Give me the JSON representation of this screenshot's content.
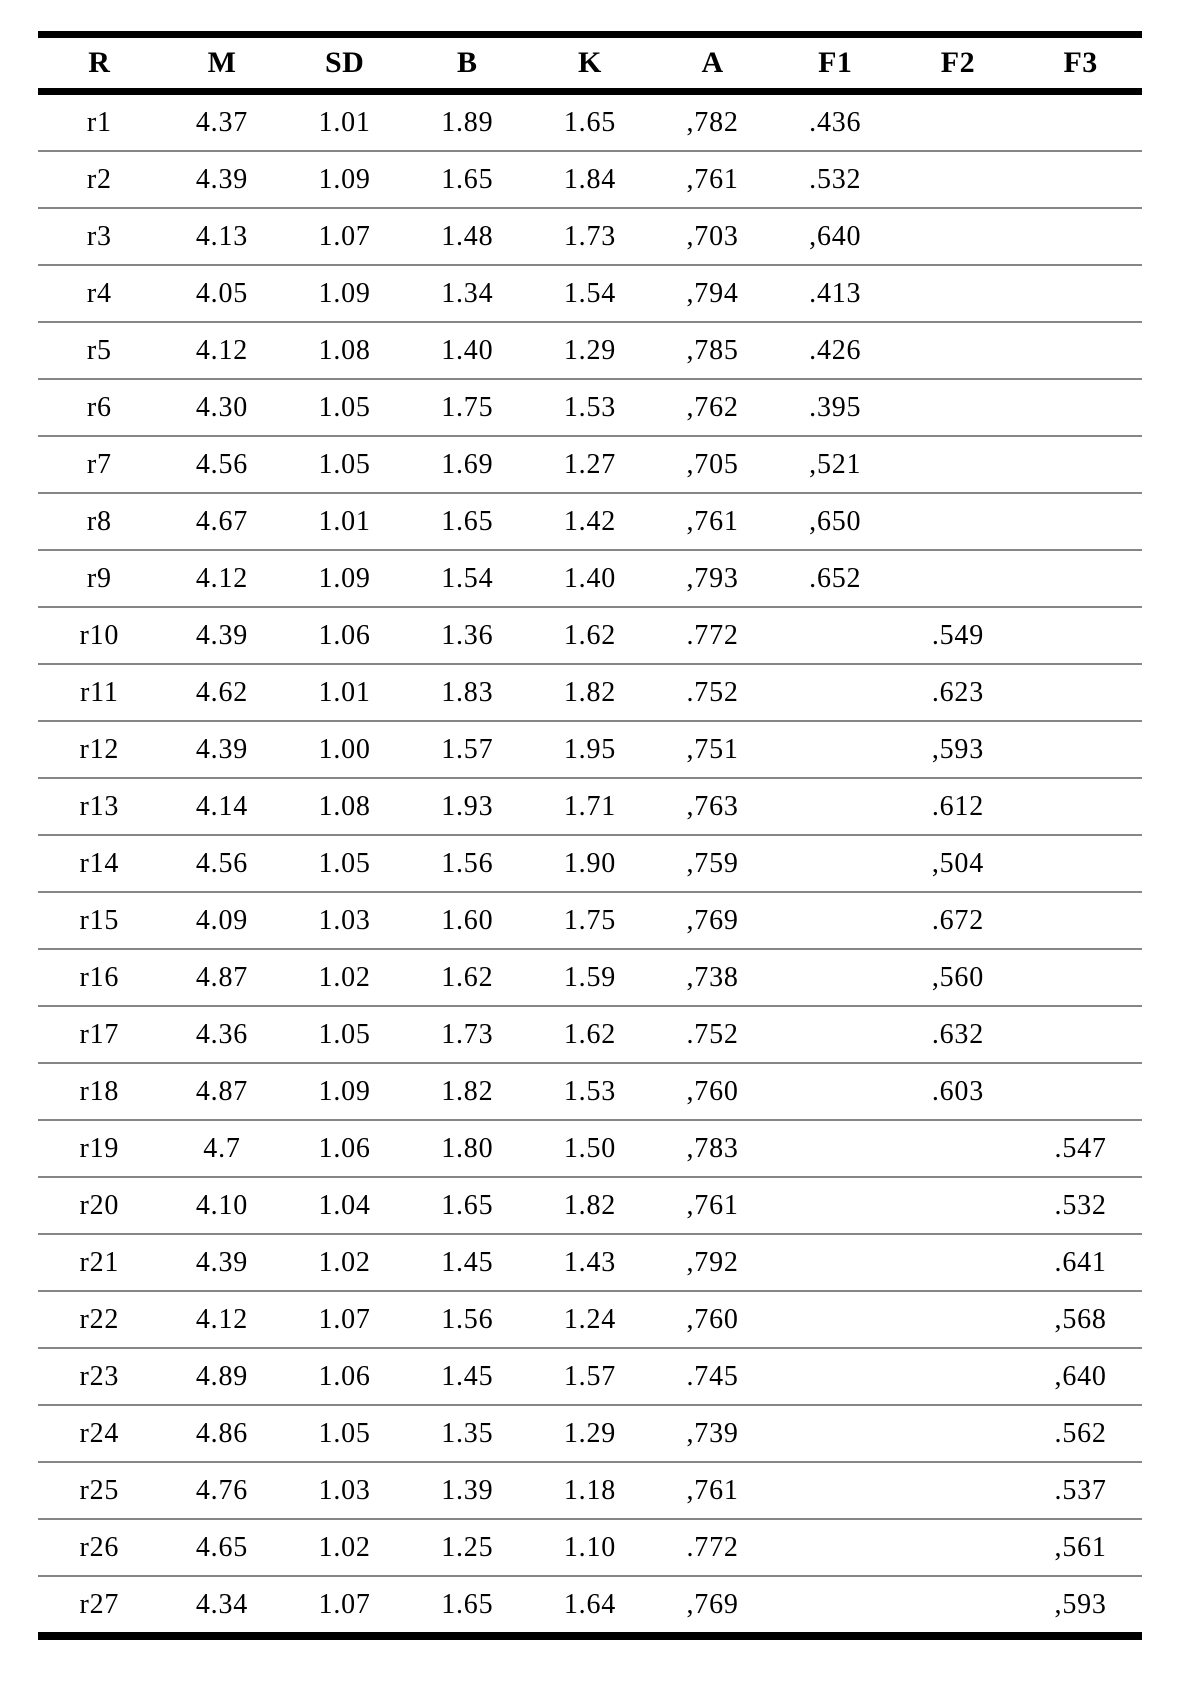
{
  "colors": {
    "rule_heavy": "#000000",
    "rule_light": "#868686",
    "text": "#000000",
    "background": "#ffffff"
  },
  "table": {
    "columns": [
      "R",
      "M",
      "SD",
      "B",
      "K",
      "A",
      "F1",
      "F2",
      "F3"
    ],
    "rows": [
      [
        "r1",
        "4.37",
        "1.01",
        "1.89",
        "1.65",
        ",782",
        ".436",
        "",
        ""
      ],
      [
        "r2",
        "4.39",
        "1.09",
        "1.65",
        "1.84",
        ",761",
        ".532",
        "",
        ""
      ],
      [
        "r3",
        "4.13",
        "1.07",
        "1.48",
        "1.73",
        ",703",
        ",640",
        "",
        ""
      ],
      [
        "r4",
        "4.05",
        "1.09",
        "1.34",
        "1.54",
        ",794",
        ".413",
        "",
        ""
      ],
      [
        "r5",
        "4.12",
        "1.08",
        "1.40",
        "1.29",
        ",785",
        ".426",
        "",
        ""
      ],
      [
        "r6",
        "4.30",
        "1.05",
        "1.75",
        "1.53",
        ",762",
        ".395",
        "",
        ""
      ],
      [
        "r7",
        "4.56",
        "1.05",
        "1.69",
        "1.27",
        ",705",
        ",521",
        "",
        ""
      ],
      [
        "r8",
        "4.67",
        "1.01",
        "1.65",
        "1.42",
        ",761",
        ",650",
        "",
        ""
      ],
      [
        "r9",
        "4.12",
        "1.09",
        "1.54",
        "1.40",
        ",793",
        ".652",
        "",
        ""
      ],
      [
        "r10",
        "4.39",
        "1.06",
        "1.36",
        "1.62",
        ".772",
        "",
        ".549",
        ""
      ],
      [
        "r11",
        "4.62",
        "1.01",
        "1.83",
        "1.82",
        ".752",
        "",
        ".623",
        ""
      ],
      [
        "r12",
        "4.39",
        "1.00",
        "1.57",
        "1.95",
        ",751",
        "",
        ",593",
        ""
      ],
      [
        "r13",
        "4.14",
        "1.08",
        "1.93",
        "1.71",
        ",763",
        "",
        ".612",
        ""
      ],
      [
        "r14",
        "4.56",
        "1.05",
        "1.56",
        "1.90",
        ",759",
        "",
        ",504",
        ""
      ],
      [
        "r15",
        "4.09",
        "1.03",
        "1.60",
        "1.75",
        ",769",
        "",
        ".672",
        ""
      ],
      [
        "r16",
        "4.87",
        "1.02",
        "1.62",
        "1.59",
        ",738",
        "",
        ",560",
        ""
      ],
      [
        "r17",
        "4.36",
        "1.05",
        "1.73",
        "1.62",
        ".752",
        "",
        ".632",
        ""
      ],
      [
        "r18",
        "4.87",
        "1.09",
        "1.82",
        "1.53",
        ",760",
        "",
        ".603",
        ""
      ],
      [
        "r19",
        "4.7",
        "1.06",
        "1.80",
        "1.50",
        ",783",
        "",
        "",
        ".547"
      ],
      [
        "r20",
        "4.10",
        "1.04",
        "1.65",
        "1.82",
        ",761",
        "",
        "",
        ".532"
      ],
      [
        "r21",
        "4.39",
        "1.02",
        "1.45",
        "1.43",
        ",792",
        "",
        "",
        ".641"
      ],
      [
        "r22",
        "4.12",
        "1.07",
        "1.56",
        "1.24",
        ",760",
        "",
        "",
        ",568"
      ],
      [
        "r23",
        "4.89",
        "1.06",
        "1.45",
        "1.57",
        ".745",
        "",
        "",
        ",640"
      ],
      [
        "r24",
        "4.86",
        "1.05",
        "1.35",
        "1.29",
        ",739",
        "",
        "",
        ".562"
      ],
      [
        "r25",
        "4.76",
        "1.03",
        "1.39",
        "1.18",
        ",761",
        "",
        "",
        ".537"
      ],
      [
        "r26",
        "4.65",
        "1.02",
        "1.25",
        "1.10",
        ".772",
        "",
        "",
        ",561"
      ],
      [
        "r27",
        "4.34",
        "1.07",
        "1.65",
        "1.64",
        ",769",
        "",
        "",
        ",593"
      ]
    ]
  }
}
